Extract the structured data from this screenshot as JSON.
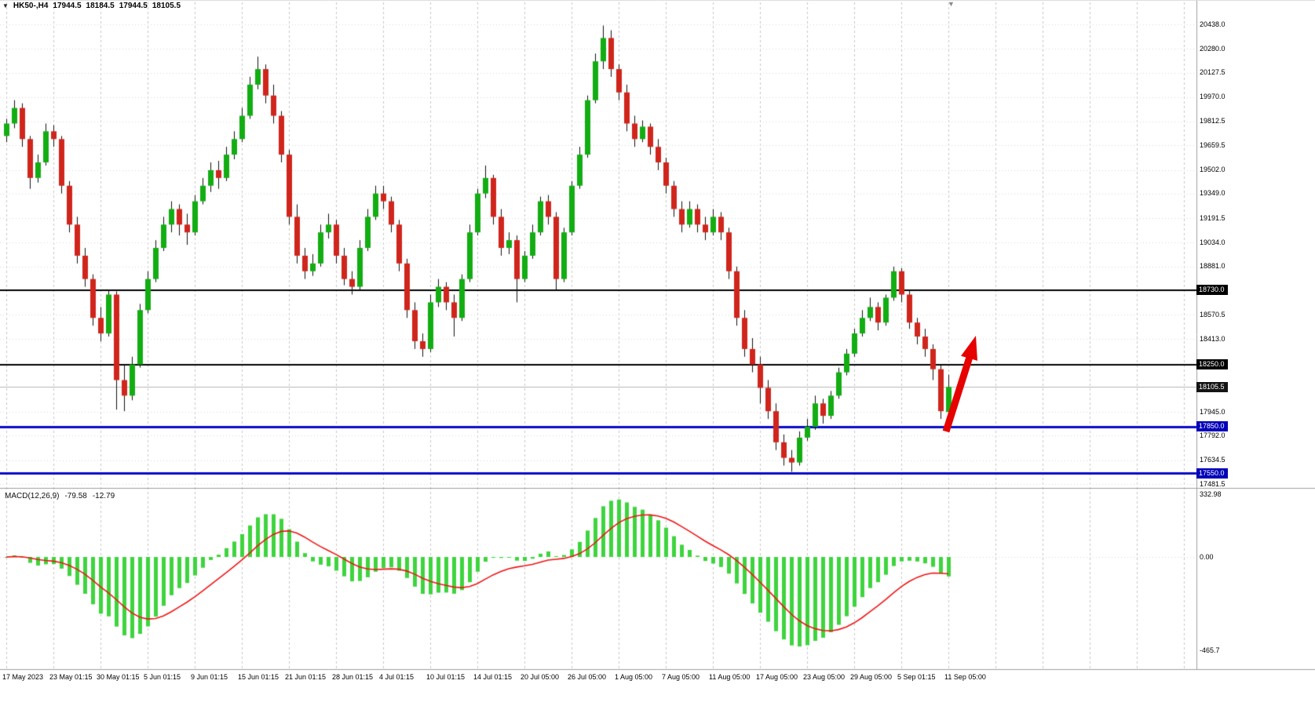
{
  "quote_bar": {
    "symbol_tf": "HK50-,H4",
    "open": "17944.5",
    "high": "18184.5",
    "low": "17944.5",
    "close": "18105.5"
  },
  "price_axis": {
    "ticks": [
      {
        "label": "20438.0",
        "price": 20438.0
      },
      {
        "label": "20280.0",
        "price": 20280.0
      },
      {
        "label": "20127.5",
        "price": 20127.5
      },
      {
        "label": "19970.0",
        "price": 19970.0
      },
      {
        "label": "19812.5",
        "price": 19812.5
      },
      {
        "label": "19659.5",
        "price": 19659.5
      },
      {
        "label": "19502.0",
        "price": 19502.0
      },
      {
        "label": "19349.0",
        "price": 19349.0
      },
      {
        "label": "19191.5",
        "price": 19191.5
      },
      {
        "label": "19034.0",
        "price": 19034.0
      },
      {
        "label": "18881.0",
        "price": 18881.0
      },
      {
        "label": "18570.5",
        "price": 18570.5
      },
      {
        "label": "18413.0",
        "price": 18413.0
      },
      {
        "label": "17945.0",
        "price": 17945.0
      },
      {
        "label": "17792.0",
        "price": 17792.0
      },
      {
        "label": "17634.5",
        "price": 17634.5
      },
      {
        "label": "17481.5",
        "price": 17481.5
      }
    ],
    "badges": [
      {
        "label": "18730.0",
        "price": 18730.0,
        "bg": "#000000"
      },
      {
        "label": "18250.0",
        "price": 18250.0,
        "bg": "#000000"
      },
      {
        "label": "18105.5",
        "price": 18105.5,
        "bg": "#141414"
      },
      {
        "label": "17850.0",
        "price": 17850.0,
        "bg": "#0000b8"
      },
      {
        "label": "17550.0",
        "price": 17550.0,
        "bg": "#0000b8"
      }
    ]
  },
  "macd_panel": {
    "title": "MACD(12,26,9)",
    "value_main": "-79.58",
    "value_signal": "-12.79",
    "histogram_color": "#3ed43e",
    "signal_color": "#f01414",
    "axis_values": [
      {
        "label": "332.98",
        "value": 332.98
      },
      {
        "label": "0.00",
        "value": 0
      },
      {
        "label": "-465.7",
        "value": -465.7
      }
    ]
  },
  "annotations": {
    "up_arrow": {
      "color": "#e60000",
      "direction": "up",
      "from_price": 17880,
      "to_price": 18430
    }
  },
  "colors": {
    "bull": "#12ad12",
    "bear": "#d0251c",
    "wick": "#111111",
    "grid": "#c6c6c6",
    "hgrid": "#d6d6d6",
    "border": "#9e9e9e",
    "background": "#ffffff",
    "black_line": "#000000",
    "blue_line": "#0a0ac8",
    "bid_line": "#b4b4b4"
  },
  "chart_data": {
    "type": "candlestick",
    "title": "HK50 H4 candlestick chart with MACD(12,26,9)",
    "ylim": [
      17481.5,
      20438.0
    ],
    "grid": true,
    "x_labels": [
      "17 May 2023",
      "23 May 01:15",
      "30 May 01:15",
      "5 Jun 01:15",
      "9 Jun 01:15",
      "15 Jun 01:15",
      "21 Jun 01:15",
      "28 Jun 01:15",
      "4 Jul 01:15",
      "10 Jul 01:15",
      "14 Jul 01:15",
      "20 Jul 05:00",
      "26 Jul 05:00",
      "1 Aug 05:00",
      "7 Aug 05:00",
      "11 Aug 05:00",
      "17 Aug 05:00",
      "23 Aug 05:00",
      "29 Aug 05:00",
      "5 Sep 01:15",
      "11 Sep 05:00"
    ],
    "hlines": [
      {
        "price": 18730.0,
        "color": "#000000",
        "width": 2,
        "role": "resistance"
      },
      {
        "price": 18250.0,
        "color": "#000000",
        "width": 2,
        "role": "support-resistance"
      },
      {
        "price": 18105.5,
        "color": "#b4b4b4",
        "width": 1,
        "role": "current-price"
      },
      {
        "price": 17850.0,
        "color": "#0a0ac8",
        "width": 3,
        "role": "support"
      },
      {
        "price": 17550.0,
        "color": "#0a0ac8",
        "width": 3,
        "role": "support"
      }
    ],
    "indicator": {
      "type": "macd",
      "fast": 12,
      "slow": 26,
      "signal": 9,
      "last_macd": -79.58,
      "last_signal": -12.79,
      "scale_labels": [
        332.98,
        0,
        -465.7
      ]
    },
    "ohlc": [
      [
        19720,
        19830,
        19680,
        19800
      ],
      [
        19800,
        19950,
        19770,
        19900
      ],
      [
        19900,
        19930,
        19650,
        19700
      ],
      [
        19700,
        19720,
        19380,
        19450
      ],
      [
        19450,
        19600,
        19420,
        19550
      ],
      [
        19550,
        19800,
        19530,
        19750
      ],
      [
        19750,
        19790,
        19650,
        19700
      ],
      [
        19700,
        19720,
        19350,
        19400
      ],
      [
        19400,
        19430,
        19100,
        19150
      ],
      [
        19150,
        19200,
        18900,
        18950
      ],
      [
        18950,
        19000,
        18750,
        18800
      ],
      [
        18800,
        18830,
        18500,
        18550
      ],
      [
        18550,
        18620,
        18400,
        18450
      ],
      [
        18450,
        18730,
        18430,
        18700
      ],
      [
        18700,
        18720,
        17960,
        18150
      ],
      [
        18150,
        18250,
        17950,
        18050
      ],
      [
        18050,
        18300,
        18020,
        18250
      ],
      [
        18250,
        18640,
        18230,
        18600
      ],
      [
        18600,
        18850,
        18580,
        18800
      ],
      [
        18800,
        19050,
        18780,
        19000
      ],
      [
        19000,
        19200,
        18980,
        19150
      ],
      [
        19150,
        19300,
        19100,
        19250
      ],
      [
        19250,
        19280,
        19080,
        19150
      ],
      [
        19150,
        19220,
        19020,
        19100
      ],
      [
        19100,
        19340,
        19080,
        19300
      ],
      [
        19300,
        19450,
        19280,
        19400
      ],
      [
        19400,
        19550,
        19360,
        19500
      ],
      [
        19500,
        19560,
        19380,
        19450
      ],
      [
        19450,
        19650,
        19430,
        19600
      ],
      [
        19600,
        19750,
        19570,
        19700
      ],
      [
        19700,
        19900,
        19680,
        19850
      ],
      [
        19850,
        20100,
        19830,
        20050
      ],
      [
        20050,
        20230,
        20020,
        20150
      ],
      [
        20150,
        20180,
        19930,
        19980
      ],
      [
        19980,
        20050,
        19800,
        19850
      ],
      [
        19850,
        19880,
        19550,
        19600
      ],
      [
        19600,
        19630,
        19150,
        19200
      ],
      [
        19200,
        19280,
        18900,
        18950
      ],
      [
        18950,
        19000,
        18800,
        18850
      ],
      [
        18850,
        18960,
        18820,
        18900
      ],
      [
        18900,
        19150,
        18880,
        19100
      ],
      [
        19100,
        19220,
        19060,
        19150
      ],
      [
        19150,
        19180,
        18900,
        18950
      ],
      [
        18950,
        19000,
        18760,
        18800
      ],
      [
        18800,
        18850,
        18700,
        18750
      ],
      [
        18750,
        19050,
        18730,
        19000
      ],
      [
        19000,
        19250,
        18980,
        19200
      ],
      [
        19200,
        19400,
        19180,
        19350
      ],
      [
        19350,
        19400,
        19250,
        19300
      ],
      [
        19300,
        19330,
        19100,
        19150
      ],
      [
        19150,
        19180,
        18850,
        18900
      ],
      [
        18900,
        18930,
        18550,
        18600
      ],
      [
        18600,
        18650,
        18350,
        18400
      ],
      [
        18400,
        18450,
        18300,
        18350
      ],
      [
        18350,
        18700,
        18330,
        18650
      ],
      [
        18650,
        18800,
        18620,
        18750
      ],
      [
        18750,
        18780,
        18600,
        18650
      ],
      [
        18650,
        18700,
        18430,
        18550
      ],
      [
        18550,
        18830,
        18530,
        18800
      ],
      [
        18800,
        19150,
        18780,
        19100
      ],
      [
        19100,
        19380,
        19080,
        19350
      ],
      [
        19350,
        19530,
        19320,
        19450
      ],
      [
        19450,
        19470,
        19150,
        19200
      ],
      [
        19200,
        19250,
        18950,
        19000
      ],
      [
        19000,
        19100,
        18960,
        19050
      ],
      [
        19050,
        19080,
        18650,
        18800
      ],
      [
        18800,
        18980,
        18780,
        18950
      ],
      [
        18950,
        19150,
        18930,
        19100
      ],
      [
        19100,
        19330,
        19080,
        19300
      ],
      [
        19300,
        19340,
        19150,
        19200
      ],
      [
        19200,
        19230,
        18730,
        18800
      ],
      [
        18800,
        19130,
        18780,
        19100
      ],
      [
        19100,
        19430,
        19080,
        19400
      ],
      [
        19400,
        19650,
        19380,
        19600
      ],
      [
        19600,
        19980,
        19580,
        19950
      ],
      [
        19950,
        20250,
        19930,
        20200
      ],
      [
        20200,
        20430,
        20150,
        20350
      ],
      [
        20350,
        20400,
        20100,
        20150
      ],
      [
        20150,
        20180,
        19950,
        20000
      ],
      [
        20000,
        20050,
        19750,
        19800
      ],
      [
        19800,
        19850,
        19650,
        19700
      ],
      [
        19700,
        19820,
        19680,
        19780
      ],
      [
        19780,
        19800,
        19600,
        19650
      ],
      [
        19650,
        19700,
        19500,
        19550
      ],
      [
        19550,
        19580,
        19350,
        19400
      ],
      [
        19400,
        19430,
        19200,
        19250
      ],
      [
        19250,
        19300,
        19100,
        19150
      ],
      [
        19150,
        19300,
        19130,
        19250
      ],
      [
        19250,
        19280,
        19100,
        19150
      ],
      [
        19150,
        19200,
        19050,
        19100
      ],
      [
        19100,
        19250,
        19080,
        19200
      ],
      [
        19200,
        19230,
        19050,
        19100
      ],
      [
        19100,
        19130,
        18800,
        18850
      ],
      [
        18850,
        18880,
        18500,
        18550
      ],
      [
        18550,
        18600,
        18300,
        18350
      ],
      [
        18350,
        18420,
        18200,
        18250
      ],
      [
        18250,
        18300,
        18000,
        18100
      ],
      [
        18100,
        18150,
        17900,
        17950
      ],
      [
        17950,
        18000,
        17700,
        17750
      ],
      [
        17750,
        17800,
        17600,
        17650
      ],
      [
        17650,
        17700,
        17560,
        17620
      ],
      [
        17620,
        17820,
        17600,
        17780
      ],
      [
        17780,
        17900,
        17760,
        17850
      ],
      [
        17850,
        18050,
        17830,
        18000
      ],
      [
        18000,
        18030,
        17870,
        17920
      ],
      [
        17920,
        18080,
        17900,
        18050
      ],
      [
        18050,
        18230,
        18030,
        18200
      ],
      [
        18200,
        18350,
        18180,
        18320
      ],
      [
        18320,
        18480,
        18300,
        18450
      ],
      [
        18450,
        18600,
        18430,
        18550
      ],
      [
        18550,
        18680,
        18530,
        18620
      ],
      [
        18620,
        18650,
        18470,
        18520
      ],
      [
        18520,
        18700,
        18500,
        18680
      ],
      [
        18680,
        18880,
        18660,
        18850
      ],
      [
        18850,
        18870,
        18650,
        18700
      ],
      [
        18700,
        18730,
        18480,
        18520
      ],
      [
        18520,
        18550,
        18380,
        18430
      ],
      [
        18430,
        18480,
        18300,
        18350
      ],
      [
        18350,
        18380,
        18150,
        18220
      ],
      [
        18220,
        18250,
        17900,
        17950
      ],
      [
        17944.5,
        18184.5,
        17944.5,
        18105.5
      ]
    ]
  }
}
